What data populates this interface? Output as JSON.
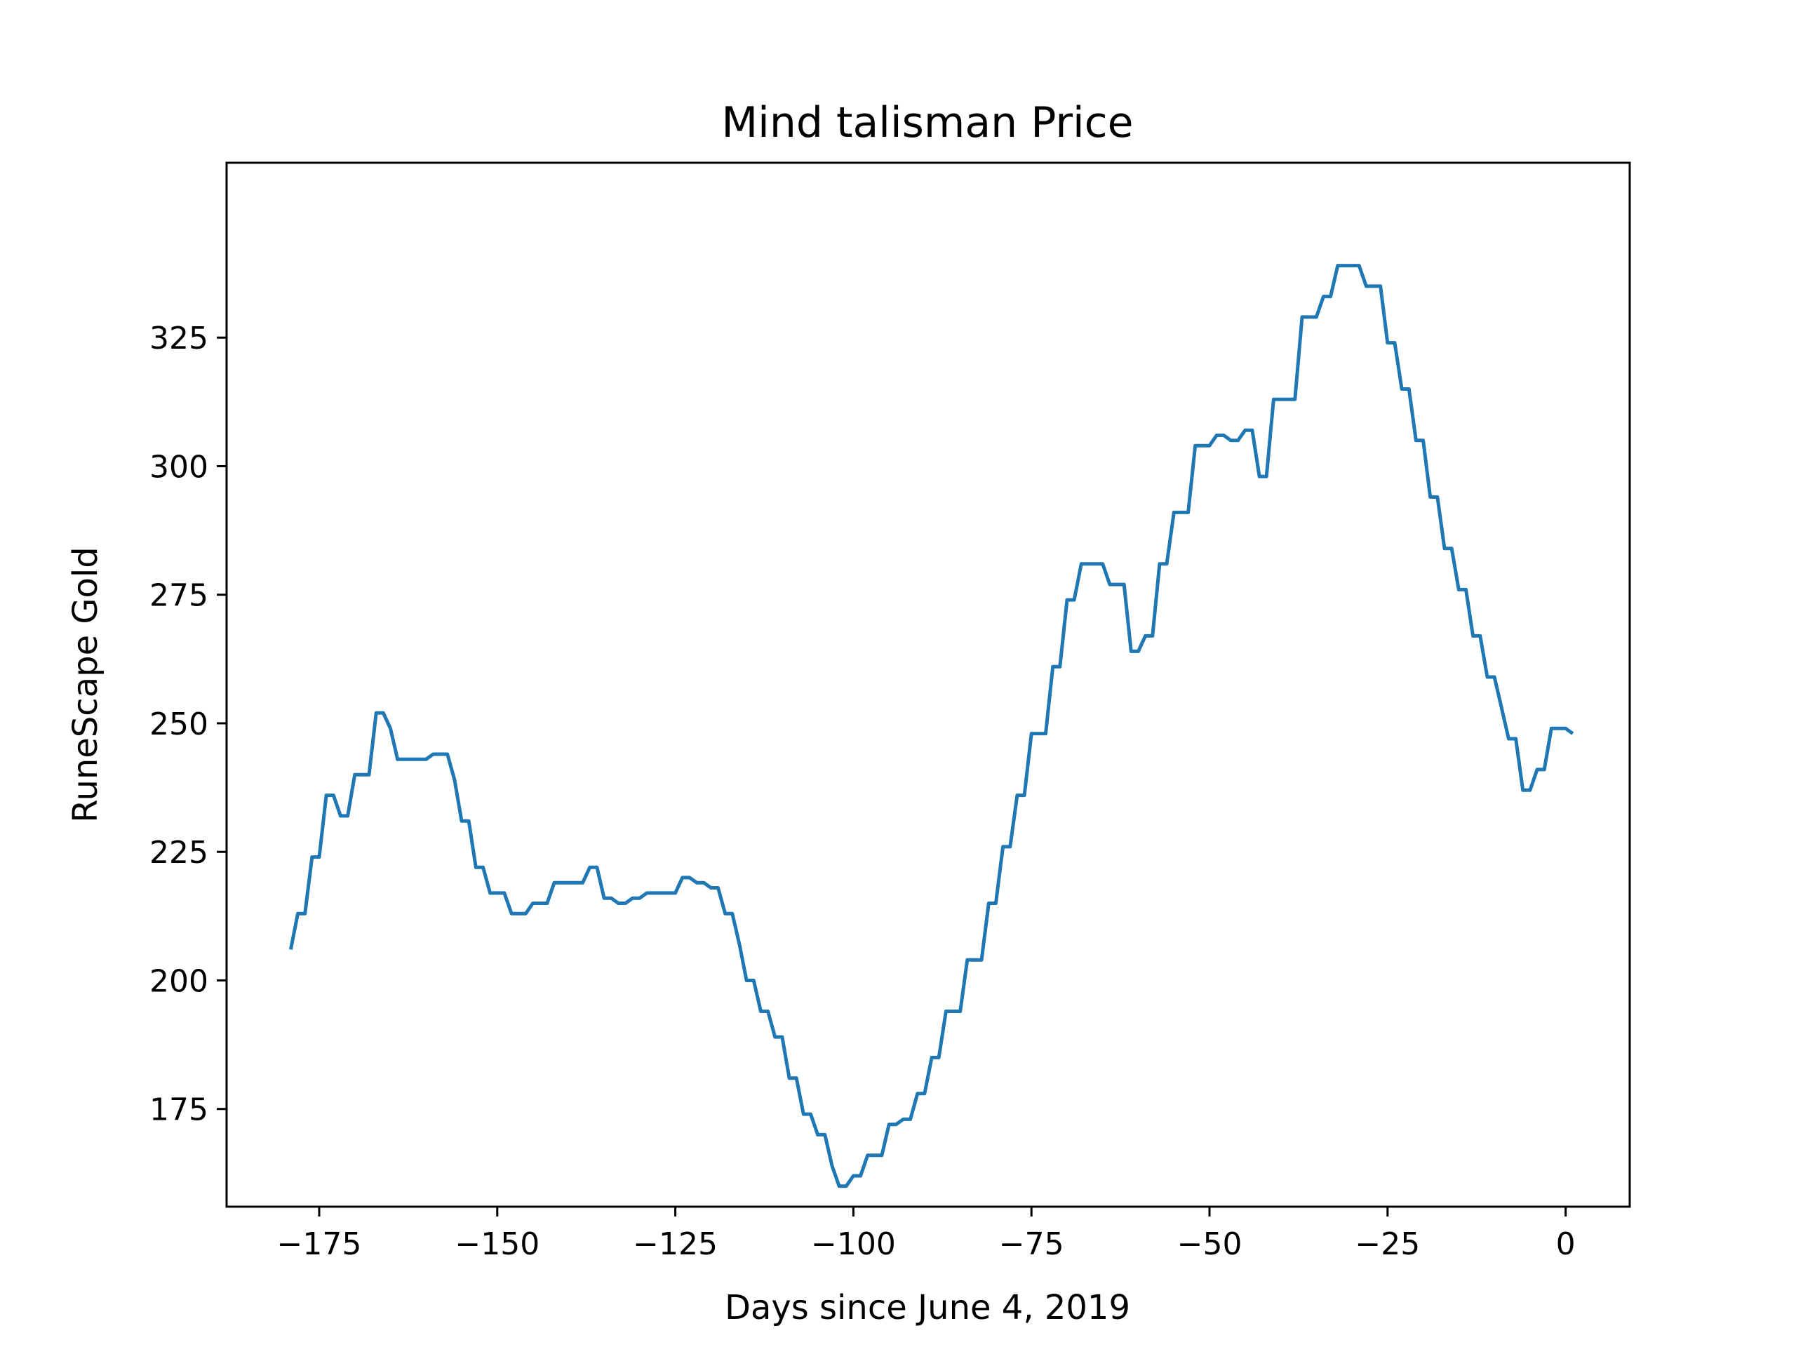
{
  "chart_data": {
    "type": "line",
    "title": "Mind talisman Price",
    "xlabel": "Days since June 4, 2019",
    "ylabel": "RuneScape Gold",
    "xlim": [
      -188,
      9
    ],
    "ylim": [
      156,
      359
    ],
    "xticks": [
      {
        "value": -175,
        "label": "−175"
      },
      {
        "value": -150,
        "label": "−150"
      },
      {
        "value": -125,
        "label": "−125"
      },
      {
        "value": -100,
        "label": "−100"
      },
      {
        "value": -75,
        "label": "−75"
      },
      {
        "value": -50,
        "label": "−50"
      },
      {
        "value": -25,
        "label": "−25"
      },
      {
        "value": 0,
        "label": "0"
      }
    ],
    "yticks": [
      {
        "value": 175,
        "label": "175"
      },
      {
        "value": 200,
        "label": "200"
      },
      {
        "value": 225,
        "label": "225"
      },
      {
        "value": 250,
        "label": "250"
      },
      {
        "value": 275,
        "label": "275"
      },
      {
        "value": 300,
        "label": "300"
      },
      {
        "value": 325,
        "label": "325"
      }
    ],
    "grid": false,
    "legend": "none",
    "series": [
      {
        "color": "#1f77b4",
        "points": [
          [
            -179,
            206
          ],
          [
            -178,
            213
          ],
          [
            -177,
            213
          ],
          [
            -176,
            224
          ],
          [
            -175,
            224
          ],
          [
            -174,
            236
          ],
          [
            -173,
            236
          ],
          [
            -172,
            232
          ],
          [
            -171,
            232
          ],
          [
            -170,
            240
          ],
          [
            -169,
            240
          ],
          [
            -168,
            240
          ],
          [
            -167,
            252
          ],
          [
            -166,
            252
          ],
          [
            -165,
            249
          ],
          [
            -164,
            243
          ],
          [
            -163,
            243
          ],
          [
            -162,
            243
          ],
          [
            -161,
            243
          ],
          [
            -160,
            243
          ],
          [
            -159,
            244
          ],
          [
            -158,
            244
          ],
          [
            -157,
            244
          ],
          [
            -156,
            239
          ],
          [
            -155,
            231
          ],
          [
            -154,
            231
          ],
          [
            -153,
            222
          ],
          [
            -152,
            222
          ],
          [
            -151,
            217
          ],
          [
            -150,
            217
          ],
          [
            -149,
            217
          ],
          [
            -148,
            213
          ],
          [
            -147,
            213
          ],
          [
            -146,
            213
          ],
          [
            -145,
            215
          ],
          [
            -144,
            215
          ],
          [
            -143,
            215
          ],
          [
            -142,
            219
          ],
          [
            -141,
            219
          ],
          [
            -140,
            219
          ],
          [
            -139,
            219
          ],
          [
            -138,
            219
          ],
          [
            -137,
            222
          ],
          [
            -136,
            222
          ],
          [
            -135,
            216
          ],
          [
            -134,
            216
          ],
          [
            -133,
            215
          ],
          [
            -132,
            215
          ],
          [
            -131,
            216
          ],
          [
            -130,
            216
          ],
          [
            -129,
            217
          ],
          [
            -128,
            217
          ],
          [
            -127,
            217
          ],
          [
            -126,
            217
          ],
          [
            -125,
            217
          ],
          [
            -124,
            220
          ],
          [
            -123,
            220
          ],
          [
            -122,
            219
          ],
          [
            -121,
            219
          ],
          [
            -120,
            218
          ],
          [
            -119,
            218
          ],
          [
            -118,
            213
          ],
          [
            -117,
            213
          ],
          [
            -116,
            207
          ],
          [
            -115,
            200
          ],
          [
            -114,
            200
          ],
          [
            -113,
            194
          ],
          [
            -112,
            194
          ],
          [
            -111,
            189
          ],
          [
            -110,
            189
          ],
          [
            -109,
            181
          ],
          [
            -108,
            181
          ],
          [
            -107,
            174
          ],
          [
            -106,
            174
          ],
          [
            -105,
            170
          ],
          [
            -104,
            170
          ],
          [
            -103,
            164
          ],
          [
            -102,
            160
          ],
          [
            -101,
            160
          ],
          [
            -100,
            162
          ],
          [
            -99,
            162
          ],
          [
            -98,
            166
          ],
          [
            -97,
            166
          ],
          [
            -96,
            166
          ],
          [
            -95,
            172
          ],
          [
            -94,
            172
          ],
          [
            -93,
            173
          ],
          [
            -92,
            173
          ],
          [
            -91,
            178
          ],
          [
            -90,
            178
          ],
          [
            -89,
            185
          ],
          [
            -88,
            185
          ],
          [
            -87,
            194
          ],
          [
            -86,
            194
          ],
          [
            -85,
            194
          ],
          [
            -84,
            204
          ],
          [
            -83,
            204
          ],
          [
            -82,
            204
          ],
          [
            -81,
            215
          ],
          [
            -80,
            215
          ],
          [
            -79,
            226
          ],
          [
            -78,
            226
          ],
          [
            -77,
            236
          ],
          [
            -76,
            236
          ],
          [
            -75,
            248
          ],
          [
            -74,
            248
          ],
          [
            -73,
            248
          ],
          [
            -72,
            261
          ],
          [
            -71,
            261
          ],
          [
            -70,
            274
          ],
          [
            -69,
            274
          ],
          [
            -68,
            281
          ],
          [
            -67,
            281
          ],
          [
            -66,
            281
          ],
          [
            -65,
            281
          ],
          [
            -64,
            277
          ],
          [
            -63,
            277
          ],
          [
            -62,
            277
          ],
          [
            -61,
            264
          ],
          [
            -60,
            264
          ],
          [
            -59,
            267
          ],
          [
            -58,
            267
          ],
          [
            -57,
            281
          ],
          [
            -56,
            281
          ],
          [
            -55,
            291
          ],
          [
            -54,
            291
          ],
          [
            -53,
            291
          ],
          [
            -52,
            304
          ],
          [
            -51,
            304
          ],
          [
            -50,
            304
          ],
          [
            -49,
            306
          ],
          [
            -48,
            306
          ],
          [
            -47,
            305
          ],
          [
            -46,
            305
          ],
          [
            -45,
            307
          ],
          [
            -44,
            307
          ],
          [
            -43,
            298
          ],
          [
            -42,
            298
          ],
          [
            -41,
            313
          ],
          [
            -40,
            313
          ],
          [
            -39,
            313
          ],
          [
            -38,
            313
          ],
          [
            -37,
            329
          ],
          [
            -36,
            329
          ],
          [
            -35,
            329
          ],
          [
            -34,
            333
          ],
          [
            -33,
            333
          ],
          [
            -32,
            339
          ],
          [
            -31,
            339
          ],
          [
            -30,
            339
          ],
          [
            -29,
            339
          ],
          [
            -28,
            335
          ],
          [
            -27,
            335
          ],
          [
            -26,
            335
          ],
          [
            -25,
            324
          ],
          [
            -24,
            324
          ],
          [
            -23,
            315
          ],
          [
            -22,
            315
          ],
          [
            -21,
            305
          ],
          [
            -20,
            305
          ],
          [
            -19,
            294
          ],
          [
            -18,
            294
          ],
          [
            -17,
            284
          ],
          [
            -16,
            284
          ],
          [
            -15,
            276
          ],
          [
            -14,
            276
          ],
          [
            -13,
            267
          ],
          [
            -12,
            267
          ],
          [
            -11,
            259
          ],
          [
            -10,
            259
          ],
          [
            -9,
            253
          ],
          [
            -8,
            247
          ],
          [
            -7,
            247
          ],
          [
            -6,
            237
          ],
          [
            -5,
            237
          ],
          [
            -4,
            241
          ],
          [
            -3,
            241
          ],
          [
            -2,
            249
          ],
          [
            -1,
            249
          ],
          [
            0,
            249
          ],
          [
            1,
            248
          ]
        ]
      }
    ]
  }
}
